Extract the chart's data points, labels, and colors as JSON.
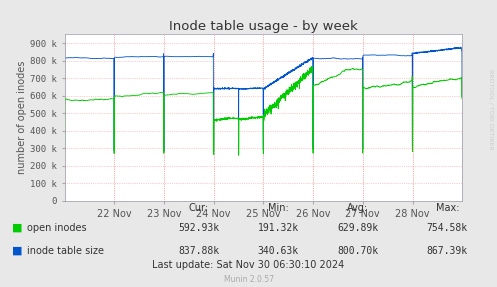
{
  "title": "Inode table usage - by week",
  "ylabel": "number of open inodes",
  "yticks": [
    0,
    100000,
    200000,
    300000,
    400000,
    500000,
    600000,
    700000,
    800000,
    900000
  ],
  "ytick_labels": [
    "0",
    "100 k",
    "200 k",
    "300 k",
    "400 k",
    "500 k",
    "600 k",
    "700 k",
    "800 k",
    "900 k"
  ],
  "xtick_positions": [
    1,
    2,
    3,
    4,
    5,
    6,
    7
  ],
  "xtick_labels": [
    "22 Nov",
    "23 Nov",
    "24 Nov",
    "25 Nov",
    "26 Nov",
    "27 Nov",
    "28 Nov"
  ],
  "bg_color": "#e8e8e8",
  "plot_bg_color": "#ffffff",
  "grid_color": "#ff9999",
  "green_color": "#00cc00",
  "blue_color": "#0055cc",
  "title_color": "#333333",
  "cur_label": "Cur:",
  "min_label": "Min:",
  "avg_label": "Avg:",
  "max_label": "Max:",
  "green_cur": "592.93k",
  "green_min": "191.32k",
  "green_avg": "629.89k",
  "green_max": "754.58k",
  "blue_cur": "837.88k",
  "blue_min": "340.63k",
  "blue_avg": "800.70k",
  "blue_max": "867.39k",
  "last_update": "Last update: Sat Nov 30 06:30:10 2024",
  "munin_version": "Munin 2.0.57",
  "watermark": "RRDTOOL / TOBI OETIKER",
  "ylim": [
    0,
    950000
  ],
  "xlim": [
    0,
    8
  ]
}
